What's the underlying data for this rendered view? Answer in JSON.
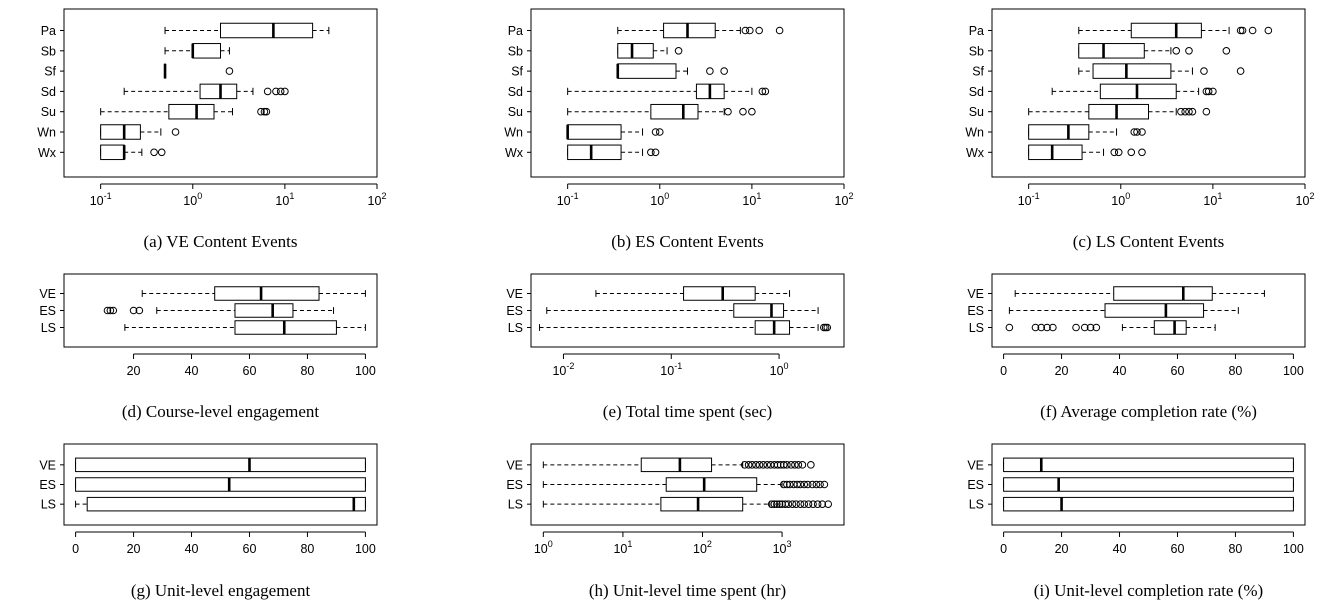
{
  "chart_data": [
    {
      "type": "boxplot",
      "caption": "(a) VE Content Events",
      "xscale": "log",
      "xlim": [
        0.04,
        100
      ],
      "ticks": [
        {
          "v": 0.1,
          "b": "10",
          "e": "-1"
        },
        {
          "v": 1,
          "b": "10",
          "e": "0"
        },
        {
          "v": 10,
          "b": "10",
          "e": "1"
        },
        {
          "v": 100,
          "b": "10",
          "e": "2"
        }
      ],
      "series": [
        {
          "name": "Pa",
          "whisker_low": 0.5,
          "q1": 2,
          "median": 7.5,
          "q3": 20,
          "whisker_high": 30,
          "outliers": []
        },
        {
          "name": "Sb",
          "whisker_low": 0.5,
          "q1": 1,
          "median": 1,
          "q3": 2,
          "whisker_high": 2.5,
          "outliers": []
        },
        {
          "name": "Sf",
          "whisker_low": 0.5,
          "q1": 0.5,
          "median": 0.5,
          "q3": 0.5,
          "whisker_high": 0.5,
          "outliers": [
            2.5
          ]
        },
        {
          "name": "Sd",
          "whisker_low": 0.18,
          "q1": 1.2,
          "median": 2,
          "q3": 3,
          "whisker_high": 4.5,
          "outliers": [
            6.5,
            8,
            9,
            10
          ]
        },
        {
          "name": "Su",
          "whisker_low": 0.1,
          "q1": 0.55,
          "median": 1.1,
          "q3": 1.7,
          "whisker_high": 2.7,
          "outliers": [
            5.5,
            6,
            6.3
          ]
        },
        {
          "name": "Wn",
          "whisker_low": 0.1,
          "q1": 0.1,
          "median": 0.18,
          "q3": 0.27,
          "whisker_high": 0.45,
          "outliers": [
            0.65
          ]
        },
        {
          "name": "Wx",
          "whisker_low": 0.1,
          "q1": 0.1,
          "median": 0.18,
          "q3": 0.18,
          "whisker_high": 0.28,
          "outliers": [
            0.38,
            0.46
          ]
        }
      ]
    },
    {
      "type": "boxplot",
      "caption": "(b) ES Content Events",
      "xscale": "log",
      "xlim": [
        0.04,
        100
      ],
      "ticks": [
        {
          "v": 0.1,
          "b": "10",
          "e": "-1"
        },
        {
          "v": 1,
          "b": "10",
          "e": "0"
        },
        {
          "v": 10,
          "b": "10",
          "e": "1"
        },
        {
          "v": 100,
          "b": "10",
          "e": "2"
        }
      ],
      "series": [
        {
          "name": "Pa",
          "whisker_low": 0.35,
          "q1": 1.1,
          "median": 2,
          "q3": 4,
          "whisker_high": 7.5,
          "outliers": [
            8.5,
            9.5,
            12,
            20
          ]
        },
        {
          "name": "Sb",
          "whisker_low": 0.35,
          "q1": 0.35,
          "median": 0.5,
          "q3": 0.85,
          "whisker_high": 1.2,
          "outliers": [
            1.6
          ]
        },
        {
          "name": "Sf",
          "whisker_low": 0.35,
          "q1": 0.35,
          "median": 0.35,
          "q3": 1.5,
          "whisker_high": 2,
          "outliers": [
            3.5,
            5
          ]
        },
        {
          "name": "Sd",
          "whisker_low": 0.1,
          "q1": 2.5,
          "median": 3.5,
          "q3": 5,
          "whisker_high": 10,
          "outliers": [
            13,
            14
          ]
        },
        {
          "name": "Su",
          "whisker_low": 0.1,
          "q1": 0.8,
          "median": 1.8,
          "q3": 2.6,
          "whisker_high": 5,
          "outliers": [
            5.5,
            8,
            10
          ]
        },
        {
          "name": "Wn",
          "whisker_low": 0.1,
          "q1": 0.1,
          "median": 0.1,
          "q3": 0.38,
          "whisker_high": 0.65,
          "outliers": [
            0.9,
            1
          ]
        },
        {
          "name": "Wx",
          "whisker_low": 0.1,
          "q1": 0.1,
          "median": 0.18,
          "q3": 0.38,
          "whisker_high": 0.65,
          "outliers": [
            0.8,
            0.9
          ]
        }
      ]
    },
    {
      "type": "boxplot",
      "caption": "(c) LS Content Events",
      "xscale": "log",
      "xlim": [
        0.04,
        100
      ],
      "ticks": [
        {
          "v": 0.1,
          "b": "10",
          "e": "-1"
        },
        {
          "v": 1,
          "b": "10",
          "e": "0"
        },
        {
          "v": 10,
          "b": "10",
          "e": "1"
        },
        {
          "v": 100,
          "b": "10",
          "e": "2"
        }
      ],
      "series": [
        {
          "name": "Pa",
          "whisker_low": 0.35,
          "q1": 1.3,
          "median": 4,
          "q3": 7.5,
          "whisker_high": 15,
          "outliers": [
            20,
            21,
            27,
            40
          ]
        },
        {
          "name": "Sb",
          "whisker_low": 0.35,
          "q1": 0.35,
          "median": 0.65,
          "q3": 1.8,
          "whisker_high": 3.5,
          "outliers": [
            4,
            5.5,
            14
          ]
        },
        {
          "name": "Sf",
          "whisker_low": 0.35,
          "q1": 0.5,
          "median": 1.15,
          "q3": 3.5,
          "whisker_high": 6,
          "outliers": [
            8,
            20
          ]
        },
        {
          "name": "Sd",
          "whisker_low": 0.18,
          "q1": 0.6,
          "median": 1.5,
          "q3": 4,
          "whisker_high": 7,
          "outliers": [
            8.5,
            9,
            10
          ]
        },
        {
          "name": "Su",
          "whisker_low": 0.1,
          "q1": 0.45,
          "median": 0.9,
          "q3": 2,
          "whisker_high": 4,
          "outliers": [
            4.5,
            5,
            5.5,
            6,
            8.5
          ]
        },
        {
          "name": "Wn",
          "whisker_low": 0.1,
          "q1": 0.1,
          "median": 0.27,
          "q3": 0.45,
          "whisker_high": 0.9,
          "outliers": [
            1.4,
            1.5,
            1.7
          ]
        },
        {
          "name": "Wx",
          "whisker_low": 0.1,
          "q1": 0.1,
          "median": 0.18,
          "q3": 0.38,
          "whisker_high": 0.65,
          "outliers": [
            0.85,
            0.95,
            1.3,
            1.7
          ]
        }
      ]
    },
    {
      "type": "boxplot",
      "caption": "(d) Course-level engagement",
      "xscale": "linear",
      "xlim": [
        -4,
        104
      ],
      "ticks": [
        {
          "v": 20,
          "t": "20"
        },
        {
          "v": 40,
          "t": "40"
        },
        {
          "v": 60,
          "t": "60"
        },
        {
          "v": 80,
          "t": "80"
        },
        {
          "v": 100,
          "t": "100"
        }
      ],
      "series": [
        {
          "name": "VE",
          "whisker_low": 23,
          "q1": 48,
          "median": 64,
          "q3": 84,
          "whisker_high": 100,
          "outliers": []
        },
        {
          "name": "ES",
          "whisker_low": 28,
          "q1": 55,
          "median": 68,
          "q3": 75,
          "whisker_high": 89,
          "outliers": [
            11,
            12,
            13,
            20,
            22
          ]
        },
        {
          "name": "LS",
          "whisker_low": 17,
          "q1": 55,
          "median": 72,
          "q3": 90,
          "whisker_high": 100,
          "outliers": []
        }
      ]
    },
    {
      "type": "boxplot",
      "caption": "(e) Total time spent (sec)",
      "xscale": "log",
      "xlim": [
        0.005,
        4
      ],
      "ticks": [
        {
          "v": 0.01,
          "b": "10",
          "e": "-2"
        },
        {
          "v": 0.1,
          "b": "10",
          "e": "-1"
        },
        {
          "v": 1,
          "b": "10",
          "e": "0"
        }
      ],
      "series": [
        {
          "name": "VE",
          "whisker_low": 0.02,
          "q1": 0.13,
          "median": 0.3,
          "q3": 0.6,
          "whisker_high": 1.25,
          "outliers": []
        },
        {
          "name": "ES",
          "whisker_low": 0.007,
          "q1": 0.38,
          "median": 0.85,
          "q3": 1.1,
          "whisker_high": 2.3,
          "outliers": []
        },
        {
          "name": "LS",
          "whisker_low": 0.006,
          "q1": 0.6,
          "median": 0.9,
          "q3": 1.25,
          "whisker_high": 2.3,
          "outliers": [
            2.6,
            2.7,
            2.8
          ]
        }
      ]
    },
    {
      "type": "boxplot",
      "caption": "(f) Average completion rate (%)",
      "xscale": "linear",
      "xlim": [
        -4,
        104
      ],
      "ticks": [
        {
          "v": 0,
          "t": "0"
        },
        {
          "v": 20,
          "t": "20"
        },
        {
          "v": 40,
          "t": "40"
        },
        {
          "v": 60,
          "t": "60"
        },
        {
          "v": 80,
          "t": "80"
        },
        {
          "v": 100,
          "t": "100"
        }
      ],
      "series": [
        {
          "name": "VE",
          "whisker_low": 4,
          "q1": 38,
          "median": 62,
          "q3": 72,
          "whisker_high": 90,
          "outliers": []
        },
        {
          "name": "ES",
          "whisker_low": 2,
          "q1": 35,
          "median": 56,
          "q3": 69,
          "whisker_high": 81,
          "outliers": []
        },
        {
          "name": "LS",
          "whisker_low": 41,
          "q1": 52,
          "median": 59,
          "q3": 63,
          "whisker_high": 73,
          "outliers": [
            2,
            11,
            13,
            15,
            17,
            25,
            28,
            30,
            32
          ]
        }
      ]
    },
    {
      "type": "boxplot",
      "caption": "(g) Unit-level engagement",
      "xscale": "linear",
      "xlim": [
        -4,
        104
      ],
      "ticks": [
        {
          "v": 0,
          "t": "0"
        },
        {
          "v": 20,
          "t": "20"
        },
        {
          "v": 40,
          "t": "40"
        },
        {
          "v": 60,
          "t": "60"
        },
        {
          "v": 80,
          "t": "80"
        },
        {
          "v": 100,
          "t": "100"
        }
      ],
      "series": [
        {
          "name": "VE",
          "whisker_low": 0,
          "q1": 0,
          "median": 60,
          "q3": 100,
          "whisker_high": 100,
          "outliers": []
        },
        {
          "name": "ES",
          "whisker_low": 0,
          "q1": 0,
          "median": 53,
          "q3": 100,
          "whisker_high": 100,
          "outliers": []
        },
        {
          "name": "LS",
          "whisker_low": 0,
          "q1": 4,
          "median": 96,
          "q3": 100,
          "whisker_high": 100,
          "outliers": []
        }
      ]
    },
    {
      "type": "boxplot",
      "caption": "(h) Unit-level time spent (hr)",
      "xscale": "log",
      "xlim": [
        0.7,
        6000
      ],
      "ticks": [
        {
          "v": 1,
          "b": "10",
          "e": "0"
        },
        {
          "v": 10,
          "b": "10",
          "e": "1"
        },
        {
          "v": 100,
          "b": "10",
          "e": "2"
        },
        {
          "v": 1000,
          "b": "10",
          "e": "3"
        }
      ],
      "series": [
        {
          "name": "VE",
          "whisker_low": 1,
          "q1": 17,
          "median": 52,
          "q3": 130,
          "whisker_high": 320,
          "outliers": [
            340,
            380,
            420,
            470,
            520,
            580,
            650,
            720,
            800,
            880,
            960,
            1050,
            1150,
            1300,
            1450,
            1600,
            1800,
            2300
          ]
        },
        {
          "name": "ES",
          "whisker_low": 1,
          "q1": 35,
          "median": 105,
          "q3": 480,
          "whisker_high": 1000,
          "outliers": [
            1050,
            1150,
            1250,
            1400,
            1550,
            1700,
            1900,
            2100,
            2400,
            2700,
            3000,
            3400
          ]
        },
        {
          "name": "LS",
          "whisker_low": 1,
          "q1": 30,
          "median": 88,
          "q3": 320,
          "whisker_high": 700,
          "outliers": [
            740,
            800,
            860,
            930,
            1000,
            1100,
            1200,
            1350,
            1500,
            1700,
            1900,
            2150,
            2450,
            2800,
            3200,
            3800
          ]
        }
      ]
    },
    {
      "type": "boxplot",
      "caption": "(i) Unit-level completion rate (%)",
      "xscale": "linear",
      "xlim": [
        -4,
        104
      ],
      "ticks": [
        {
          "v": 0,
          "t": "0"
        },
        {
          "v": 20,
          "t": "20"
        },
        {
          "v": 40,
          "t": "40"
        },
        {
          "v": 60,
          "t": "60"
        },
        {
          "v": 80,
          "t": "80"
        },
        {
          "v": 100,
          "t": "100"
        }
      ],
      "series": [
        {
          "name": "VE",
          "whisker_low": 0,
          "q1": 0,
          "median": 13,
          "q3": 100,
          "whisker_high": 100,
          "outliers": []
        },
        {
          "name": "ES",
          "whisker_low": 0,
          "q1": 0,
          "median": 19,
          "q3": 100,
          "whisker_high": 100,
          "outliers": []
        },
        {
          "name": "LS",
          "whisker_low": 0,
          "q1": 0,
          "median": 20,
          "q3": 100,
          "whisker_high": 100,
          "outliers": []
        }
      ]
    }
  ]
}
